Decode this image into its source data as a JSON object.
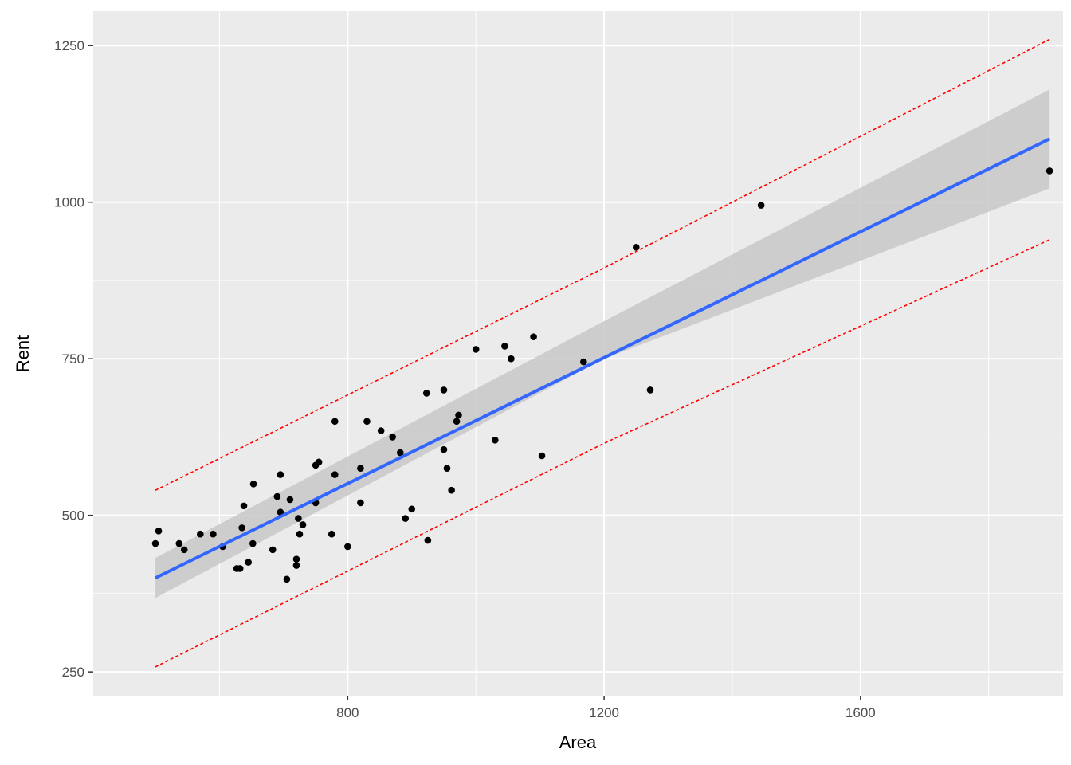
{
  "chart_data": {
    "type": "scatter",
    "title": "",
    "xlabel": "Area",
    "ylabel": "Rent",
    "xlim": [
      403,
      1916
    ],
    "ylim": [
      212,
      1305
    ],
    "x_ticks": [
      800,
      1200,
      1600
    ],
    "x_tick_labels": [
      "800",
      "1200",
      "1600"
    ],
    "x_minor_ticks": [
      600,
      1000,
      1400,
      1800
    ],
    "y_ticks": [
      250,
      500,
      750,
      1000,
      1250
    ],
    "y_tick_labels": [
      "250",
      "500",
      "750",
      "1000",
      "1250"
    ],
    "y_minor_ticks": [
      375,
      625,
      875,
      1125
    ],
    "grid": true,
    "legend": "none",
    "colors": {
      "panel": "#ebebeb",
      "grid": "#ffffff",
      "points": "#000000",
      "fit_line": "#3366ff",
      "confidence_band": "#c8c8c8",
      "prediction_interval": "#ff0000"
    },
    "points": [
      [
        500,
        455
      ],
      [
        505,
        475
      ],
      [
        537,
        455
      ],
      [
        545,
        445
      ],
      [
        570,
        470
      ],
      [
        590,
        470
      ],
      [
        605,
        450
      ],
      [
        627,
        415
      ],
      [
        632,
        415
      ],
      [
        635,
        480
      ],
      [
        638,
        515
      ],
      [
        645,
        425
      ],
      [
        652,
        455
      ],
      [
        653,
        550
      ],
      [
        683,
        445
      ],
      [
        690,
        530
      ],
      [
        695,
        565
      ],
      [
        695,
        505
      ],
      [
        710,
        525
      ],
      [
        720,
        420
      ],
      [
        720,
        430
      ],
      [
        723,
        495
      ],
      [
        725,
        470
      ],
      [
        730,
        485
      ],
      [
        705,
        398
      ],
      [
        750,
        520
      ],
      [
        750,
        580
      ],
      [
        755,
        585
      ],
      [
        775,
        470
      ],
      [
        780,
        565
      ],
      [
        780,
        650
      ],
      [
        800,
        450
      ],
      [
        820,
        575
      ],
      [
        820,
        520
      ],
      [
        830,
        650
      ],
      [
        852,
        635
      ],
      [
        870,
        625
      ],
      [
        882,
        600
      ],
      [
        890,
        495
      ],
      [
        900,
        510
      ],
      [
        925,
        460
      ],
      [
        923,
        695
      ],
      [
        950,
        700
      ],
      [
        950,
        605
      ],
      [
        955,
        575
      ],
      [
        962,
        540
      ],
      [
        970,
        650
      ],
      [
        973,
        660
      ],
      [
        1030,
        620
      ],
      [
        1000,
        765
      ],
      [
        1045,
        770
      ],
      [
        1055,
        750
      ],
      [
        1090,
        785
      ],
      [
        1103,
        595
      ],
      [
        1168,
        745
      ],
      [
        1250,
        928
      ],
      [
        1272,
        700
      ],
      [
        1445,
        995
      ],
      [
        1895,
        1050
      ]
    ],
    "series": [
      {
        "type": "fit_line",
        "x": [
          500,
          1895
        ],
        "y": [
          400,
          1101
        ]
      },
      {
        "type": "confidence_band",
        "x": [
          500,
          1200,
          1895
        ],
        "lower": [
          368,
          750,
          1022
        ],
        "upper": [
          432,
          810,
          1180
        ]
      },
      {
        "type": "prediction_interval",
        "x": [
          500,
          1200,
          1895
        ],
        "lower": [
          258,
          615,
          940
        ],
        "upper": [
          540,
          895,
          1260
        ]
      }
    ]
  }
}
